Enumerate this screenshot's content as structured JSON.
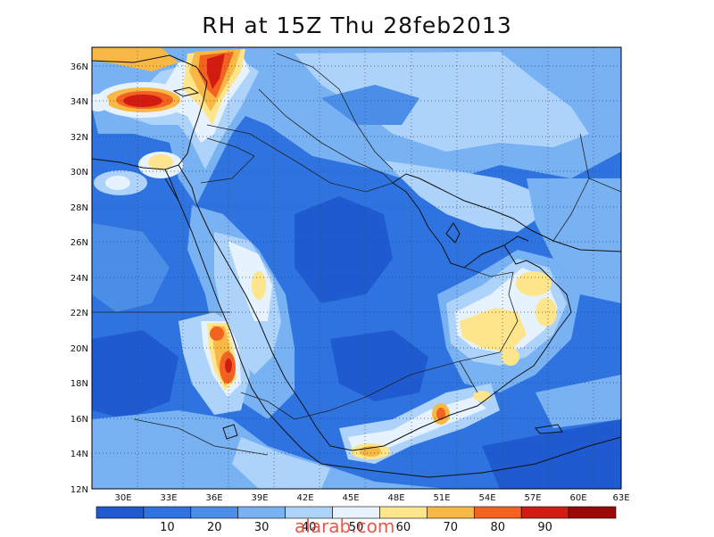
{
  "title": "RH at 15Z Thu 28feb2013",
  "watermark": "alarab.com",
  "axes": {
    "lon_ticks": [
      "30E",
      "33E",
      "36E",
      "39E",
      "42E",
      "45E",
      "48E",
      "51E",
      "54E",
      "57E",
      "60E",
      "63E"
    ],
    "lat_ticks": [
      "36N",
      "34N",
      "32N",
      "30N",
      "28N",
      "26N",
      "24N",
      "22N",
      "20N",
      "18N",
      "16N",
      "14N",
      "12N"
    ]
  },
  "colorbar": {
    "colors": [
      "#1f5ad0",
      "#2e73e0",
      "#4a8ee8",
      "#79b2f2",
      "#aed3fa",
      "#e6f2fe",
      "#fde58c",
      "#f8b846",
      "#f26322",
      "#d21c12",
      "#9a0808"
    ],
    "labels": [
      "10",
      "20",
      "30",
      "40",
      "50",
      "60",
      "70",
      "80",
      "90"
    ]
  },
  "palette": {
    "base": "#2e73e0",
    "dark": "#1f5ad0",
    "mid": "#4a8ee8",
    "light": "#79b2f2",
    "pale": "#aed3fa",
    "white": "#e6f2fe",
    "yellow": "#fde58c",
    "orange": "#f8b846",
    "red_orange": "#f26322",
    "red": "#d21c12",
    "dark_red": "#9a0808",
    "coast": "#111111",
    "grid": "#444444"
  }
}
